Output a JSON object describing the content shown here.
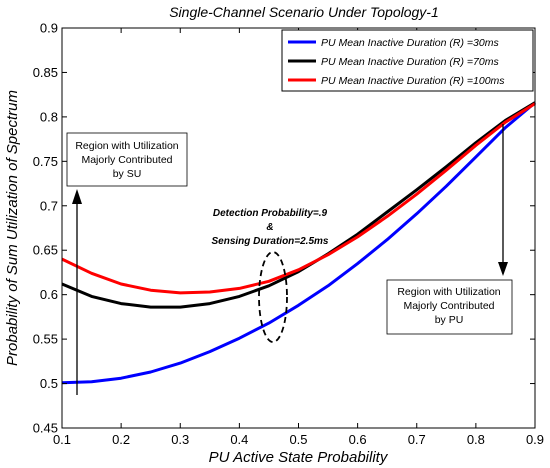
{
  "chart_data": {
    "type": "line",
    "title": "Single-Channel Scenario Under Topology-1",
    "xlabel": "PU Active State Probability",
    "ylabel": "Probability of Sum Utilization of Spectrum",
    "xlim": [
      0.1,
      0.9
    ],
    "ylim": [
      0.45,
      0.9
    ],
    "xticks": [
      "0.1",
      "0.2",
      "0.3",
      "0.4",
      "0.5",
      "0.6",
      "0.7",
      "0.8",
      "0.9"
    ],
    "yticks": [
      "0.45",
      "0.5",
      "0.55",
      "0.6",
      "0.65",
      "0.7",
      "0.75",
      "0.8",
      "0.85",
      "0.9"
    ],
    "grid": false,
    "legend_position": "top-right",
    "series": [
      {
        "name": "PU Mean Inactive Duration (R) =30ms",
        "color": "#0000ff",
        "x": [
          0.1,
          0.15,
          0.2,
          0.25,
          0.3,
          0.35,
          0.4,
          0.45,
          0.5,
          0.55,
          0.6,
          0.65,
          0.7,
          0.75,
          0.8,
          0.85,
          0.9
        ],
        "y": [
          0.501,
          0.502,
          0.506,
          0.513,
          0.523,
          0.536,
          0.551,
          0.568,
          0.588,
          0.61,
          0.635,
          0.662,
          0.691,
          0.722,
          0.755,
          0.788,
          0.816
        ]
      },
      {
        "name": "PU Mean Inactive Duration (R) =70ms",
        "color": "#000000",
        "x": [
          0.1,
          0.15,
          0.2,
          0.25,
          0.3,
          0.35,
          0.4,
          0.45,
          0.5,
          0.55,
          0.6,
          0.65,
          0.7,
          0.75,
          0.8,
          0.85,
          0.9
        ],
        "y": [
          0.612,
          0.598,
          0.59,
          0.586,
          0.586,
          0.59,
          0.598,
          0.61,
          0.626,
          0.646,
          0.668,
          0.693,
          0.718,
          0.744,
          0.771,
          0.796,
          0.816
        ]
      },
      {
        "name": "PU Mean Inactive Duration (R) =100ms",
        "color": "#ff0000",
        "x": [
          0.1,
          0.15,
          0.2,
          0.25,
          0.3,
          0.35,
          0.4,
          0.45,
          0.5,
          0.55,
          0.6,
          0.65,
          0.7,
          0.75,
          0.8,
          0.85,
          0.9
        ],
        "y": [
          0.64,
          0.624,
          0.612,
          0.605,
          0.602,
          0.603,
          0.607,
          0.615,
          0.628,
          0.645,
          0.665,
          0.688,
          0.713,
          0.74,
          0.768,
          0.794,
          0.815
        ]
      }
    ],
    "annotations": {
      "su_region": [
        "Region with Utilization",
        "Majorly Contributed",
        "by SU"
      ],
      "pu_region": [
        "Region with Utilization",
        "Majorly Contributed",
        "by PU"
      ],
      "detection": [
        "Detection Probability=.9",
        "&",
        "Sensing Duration=2.5ms"
      ]
    }
  }
}
